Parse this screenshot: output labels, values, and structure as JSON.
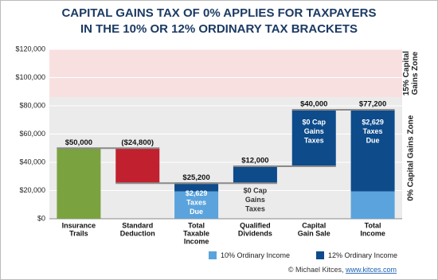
{
  "chart_data": {
    "type": "waterfall",
    "title": [
      "CAPITAL GAINS TAX OF 0% APPLIES FOR TAXPAYERS",
      "IN THE 10% OR 12% ORDINARY TAX BRACKETS"
    ],
    "categories": [
      [
        "Insurance",
        "Trails"
      ],
      [
        "Standard",
        "Deduction"
      ],
      [
        "Total",
        "Taxable",
        "Income"
      ],
      [
        "Qualified",
        "Dividends"
      ],
      [
        "Capital",
        "Gain Sale"
      ],
      [
        "Total",
        "Income"
      ]
    ],
    "values": [
      50000,
      -24800,
      25200,
      12000,
      40000,
      77200
    ],
    "value_labels": [
      "$50,000",
      "($24,800)",
      "$25,200",
      "$12,000",
      "$40,000",
      "$77,200"
    ],
    "totals": [
      2,
      5
    ],
    "colors": [
      "#7aa33f",
      "#c1212f",
      "#0d4b8b",
      "#0d4b8b",
      "#0d4b8b",
      "#0d4b8b"
    ],
    "bracket_top": 19400,
    "series": [
      {
        "name": "10% Ordinary Income",
        "color": "#5ba3dc"
      },
      {
        "name": "12% Ordinary Income",
        "color": "#0d4b8b"
      }
    ],
    "zones": [
      {
        "label": [
          "15% Capital",
          "Gains Zone"
        ],
        "from": 86000,
        "to": 120000,
        "color": "#f9e0e0"
      },
      {
        "label": [
          "0% Capital Gains Zone"
        ],
        "from": 0,
        "to": 86000,
        "color": "#ebebeb"
      }
    ],
    "annotations": [
      {
        "bar": 2,
        "lines": [
          "$2,629",
          "Taxes",
          "Due"
        ],
        "color": "#ffffff"
      },
      {
        "bar": 3,
        "lines": [
          "$0 Cap",
          "Gains",
          "Taxes"
        ],
        "color": "#333333"
      },
      {
        "bar": 4,
        "lines": [
          "$0 Cap",
          "Gains",
          "Taxes"
        ],
        "color": "#ffffff"
      },
      {
        "bar": 5,
        "lines": [
          "$2,629",
          "Taxes",
          "Due"
        ],
        "color": "#ffffff"
      }
    ],
    "ylim": [
      0,
      120000
    ],
    "yticks": [
      {
        "value": 0,
        "label": "$0"
      },
      {
        "value": 20000,
        "label": "$20,000"
      },
      {
        "value": 40000,
        "label": "$40,000"
      },
      {
        "value": 60000,
        "label": "$60,000"
      },
      {
        "value": 80000,
        "label": "$80,000"
      },
      {
        "value": 100000,
        "label": "$100,000"
      },
      {
        "value": 120000,
        "label": "$120,000"
      }
    ],
    "grid": true,
    "source": "© Michael Kitces, ",
    "source_link": "www.kitces.com"
  }
}
